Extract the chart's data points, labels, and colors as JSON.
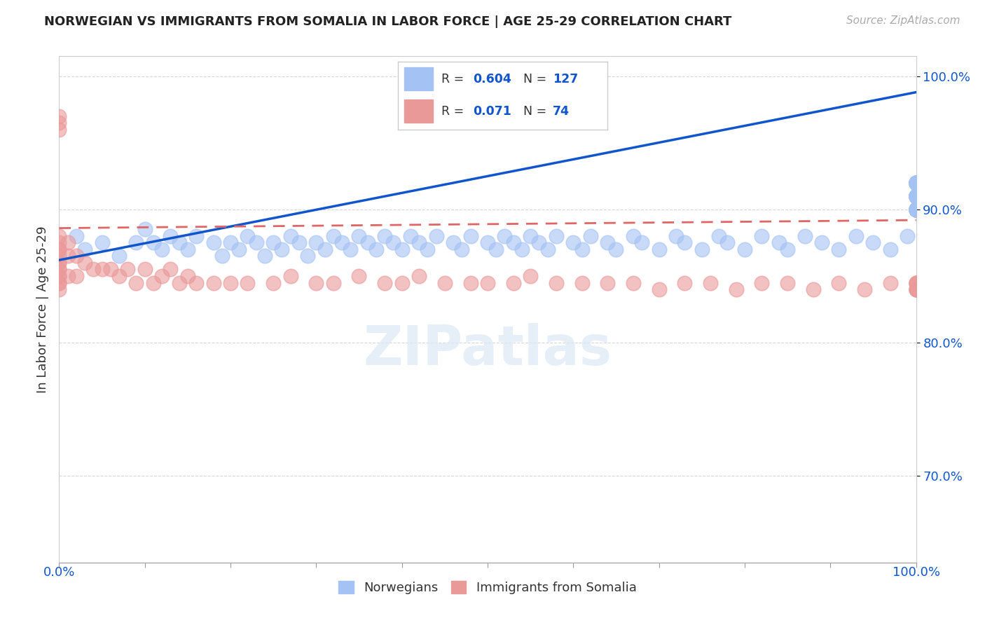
{
  "title": "NORWEGIAN VS IMMIGRANTS FROM SOMALIA IN LABOR FORCE | AGE 25-29 CORRELATION CHART",
  "source": "Source: ZipAtlas.com",
  "ylabel": "In Labor Force | Age 25-29",
  "legend_labels": [
    "Norwegians",
    "Immigrants from Somalia"
  ],
  "legend_R": [
    0.604,
    0.071
  ],
  "legend_N": [
    127,
    74
  ],
  "blue_color": "#a4c2f4",
  "pink_color": "#ea9999",
  "blue_line_color": "#1155cc",
  "pink_line_color": "#e06666",
  "background_color": "#ffffff",
  "xlim": [
    0.0,
    1.0
  ],
  "ylim": [
    0.635,
    1.015
  ],
  "yticks": [
    0.7,
    0.8,
    0.9,
    1.0
  ],
  "ytick_labels": [
    "70.0%",
    "80.0%",
    "90.0%",
    "100.0%"
  ],
  "xtick_labels": [
    "0.0%",
    "100.0%"
  ],
  "blue_x": [
    0.02,
    0.03,
    0.05,
    0.07,
    0.09,
    0.1,
    0.11,
    0.12,
    0.13,
    0.14,
    0.15,
    0.16,
    0.18,
    0.19,
    0.2,
    0.21,
    0.22,
    0.23,
    0.24,
    0.25,
    0.26,
    0.27,
    0.28,
    0.29,
    0.3,
    0.31,
    0.32,
    0.33,
    0.34,
    0.35,
    0.36,
    0.37,
    0.38,
    0.39,
    0.4,
    0.41,
    0.42,
    0.43,
    0.44,
    0.46,
    0.47,
    0.48,
    0.5,
    0.51,
    0.52,
    0.53,
    0.54,
    0.55,
    0.56,
    0.57,
    0.58,
    0.6,
    0.61,
    0.62,
    0.64,
    0.65,
    0.67,
    0.68,
    0.7,
    0.72,
    0.73,
    0.75,
    0.77,
    0.78,
    0.8,
    0.82,
    0.84,
    0.85,
    0.87,
    0.89,
    0.91,
    0.93,
    0.95,
    0.97,
    0.99,
    1.0,
    1.0,
    1.0,
    1.0,
    1.0,
    1.0,
    1.0,
    1.0,
    1.0,
    1.0,
    1.0,
    1.0,
    1.0,
    1.0,
    1.0,
    1.0,
    1.0,
    1.0,
    1.0,
    1.0,
    1.0,
    1.0,
    1.0,
    1.0,
    1.0,
    1.0,
    1.0,
    1.0,
    1.0,
    1.0,
    1.0,
    1.0,
    1.0,
    1.0,
    1.0,
    1.0,
    1.0,
    1.0,
    1.0,
    1.0,
    1.0,
    1.0,
    1.0,
    1.0,
    1.0,
    1.0,
    1.0,
    1.0,
    1.0,
    1.0,
    1.0,
    1.0
  ],
  "blue_y": [
    0.88,
    0.87,
    0.875,
    0.865,
    0.875,
    0.885,
    0.875,
    0.87,
    0.88,
    0.875,
    0.87,
    0.88,
    0.875,
    0.865,
    0.875,
    0.87,
    0.88,
    0.875,
    0.865,
    0.875,
    0.87,
    0.88,
    0.875,
    0.865,
    0.875,
    0.87,
    0.88,
    0.875,
    0.87,
    0.88,
    0.875,
    0.87,
    0.88,
    0.875,
    0.87,
    0.88,
    0.875,
    0.87,
    0.88,
    0.875,
    0.87,
    0.88,
    0.875,
    0.87,
    0.88,
    0.875,
    0.87,
    0.88,
    0.875,
    0.87,
    0.88,
    0.875,
    0.87,
    0.88,
    0.875,
    0.87,
    0.88,
    0.875,
    0.87,
    0.88,
    0.875,
    0.87,
    0.88,
    0.875,
    0.87,
    0.88,
    0.875,
    0.87,
    0.88,
    0.875,
    0.87,
    0.88,
    0.875,
    0.87,
    0.88,
    0.9,
    0.91,
    0.92,
    0.9,
    0.91,
    0.92,
    0.9,
    0.91,
    0.92,
    0.9,
    0.91,
    0.92,
    0.9,
    0.91,
    0.92,
    0.9,
    0.91,
    0.92,
    0.9,
    0.91,
    0.92,
    0.9,
    0.91,
    0.92,
    0.9,
    0.91,
    0.92,
    0.9,
    0.91,
    0.92,
    0.9,
    0.91,
    0.92,
    0.9,
    0.91,
    0.92,
    0.9,
    0.91,
    0.92,
    0.9,
    0.91,
    0.92,
    0.9,
    0.91,
    0.92,
    0.9,
    0.91,
    0.92,
    0.9,
    0.91,
    0.92,
    0.9
  ],
  "pink_x": [
    0.0,
    0.0,
    0.0,
    0.0,
    0.0,
    0.0,
    0.0,
    0.0,
    0.0,
    0.0,
    0.0,
    0.0,
    0.0,
    0.0,
    0.0,
    0.0,
    0.0,
    0.01,
    0.01,
    0.01,
    0.02,
    0.02,
    0.03,
    0.04,
    0.05,
    0.06,
    0.07,
    0.08,
    0.09,
    0.1,
    0.11,
    0.12,
    0.13,
    0.14,
    0.15,
    0.16,
    0.18,
    0.2,
    0.22,
    0.25,
    0.27,
    0.3,
    0.32,
    0.35,
    0.38,
    0.4,
    0.42,
    0.45,
    0.48,
    0.5,
    0.53,
    0.55,
    0.58,
    0.61,
    0.64,
    0.67,
    0.7,
    0.73,
    0.76,
    0.79,
    0.82,
    0.85,
    0.88,
    0.91,
    0.94,
    0.97,
    1.0,
    1.0,
    1.0,
    1.0,
    1.0,
    1.0,
    1.0,
    1.0
  ],
  "pink_y": [
    0.97,
    0.96,
    0.965,
    0.88,
    0.87,
    0.86,
    0.855,
    0.85,
    0.845,
    0.84,
    0.86,
    0.875,
    0.87,
    0.865,
    0.855,
    0.85,
    0.845,
    0.875,
    0.865,
    0.85,
    0.865,
    0.85,
    0.86,
    0.855,
    0.855,
    0.855,
    0.85,
    0.855,
    0.845,
    0.855,
    0.845,
    0.85,
    0.855,
    0.845,
    0.85,
    0.845,
    0.845,
    0.845,
    0.845,
    0.845,
    0.85,
    0.845,
    0.845,
    0.85,
    0.845,
    0.845,
    0.85,
    0.845,
    0.845,
    0.845,
    0.845,
    0.85,
    0.845,
    0.845,
    0.845,
    0.845,
    0.84,
    0.845,
    0.845,
    0.84,
    0.845,
    0.845,
    0.84,
    0.845,
    0.84,
    0.845,
    0.84,
    0.845,
    0.84,
    0.845,
    0.84,
    0.845,
    0.84,
    0.845
  ],
  "blue_line": {
    "x0": 0.0,
    "x1": 1.0,
    "y0": 0.862,
    "y1": 0.988
  },
  "pink_line": {
    "x0": 0.0,
    "x1": 1.0,
    "y0": 0.886,
    "y1": 0.892
  }
}
